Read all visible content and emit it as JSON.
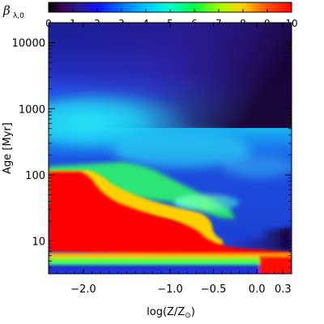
{
  "chart_data": {
    "type": "heatmap",
    "colorbar": {
      "label": "β",
      "label_subscript": "λ,0",
      "ticks": [
        "0",
        "1",
        "2",
        "3",
        "4",
        "5",
        "6",
        "7",
        "8",
        "9",
        "10"
      ],
      "range": [
        0,
        10
      ]
    },
    "xlabel": "log(Z/Z",
    "xlabel_sub": "⊙",
    "xlabel_end": ")",
    "ylabel": "Age [Myr]",
    "x_ticks": [
      {
        "value": -2.0,
        "label": "−2.0"
      },
      {
        "value": -1.0,
        "label": "−1.0"
      },
      {
        "value": -0.5,
        "label": "−0.5"
      },
      {
        "value": 0.0,
        "label": "0.0"
      },
      {
        "value": 0.3,
        "label": "0.3"
      }
    ],
    "y_ticks": [
      {
        "value": 10,
        "label": "10"
      },
      {
        "value": 100,
        "label": "100"
      },
      {
        "value": 1000,
        "label": "1000"
      },
      {
        "value": 10000,
        "label": "10000"
      }
    ],
    "xlim": [
      -2.4,
      0.4
    ],
    "ylim": [
      3.2,
      20000
    ],
    "y_scale": "log",
    "colormap": "rainbow (purple to red)"
  }
}
